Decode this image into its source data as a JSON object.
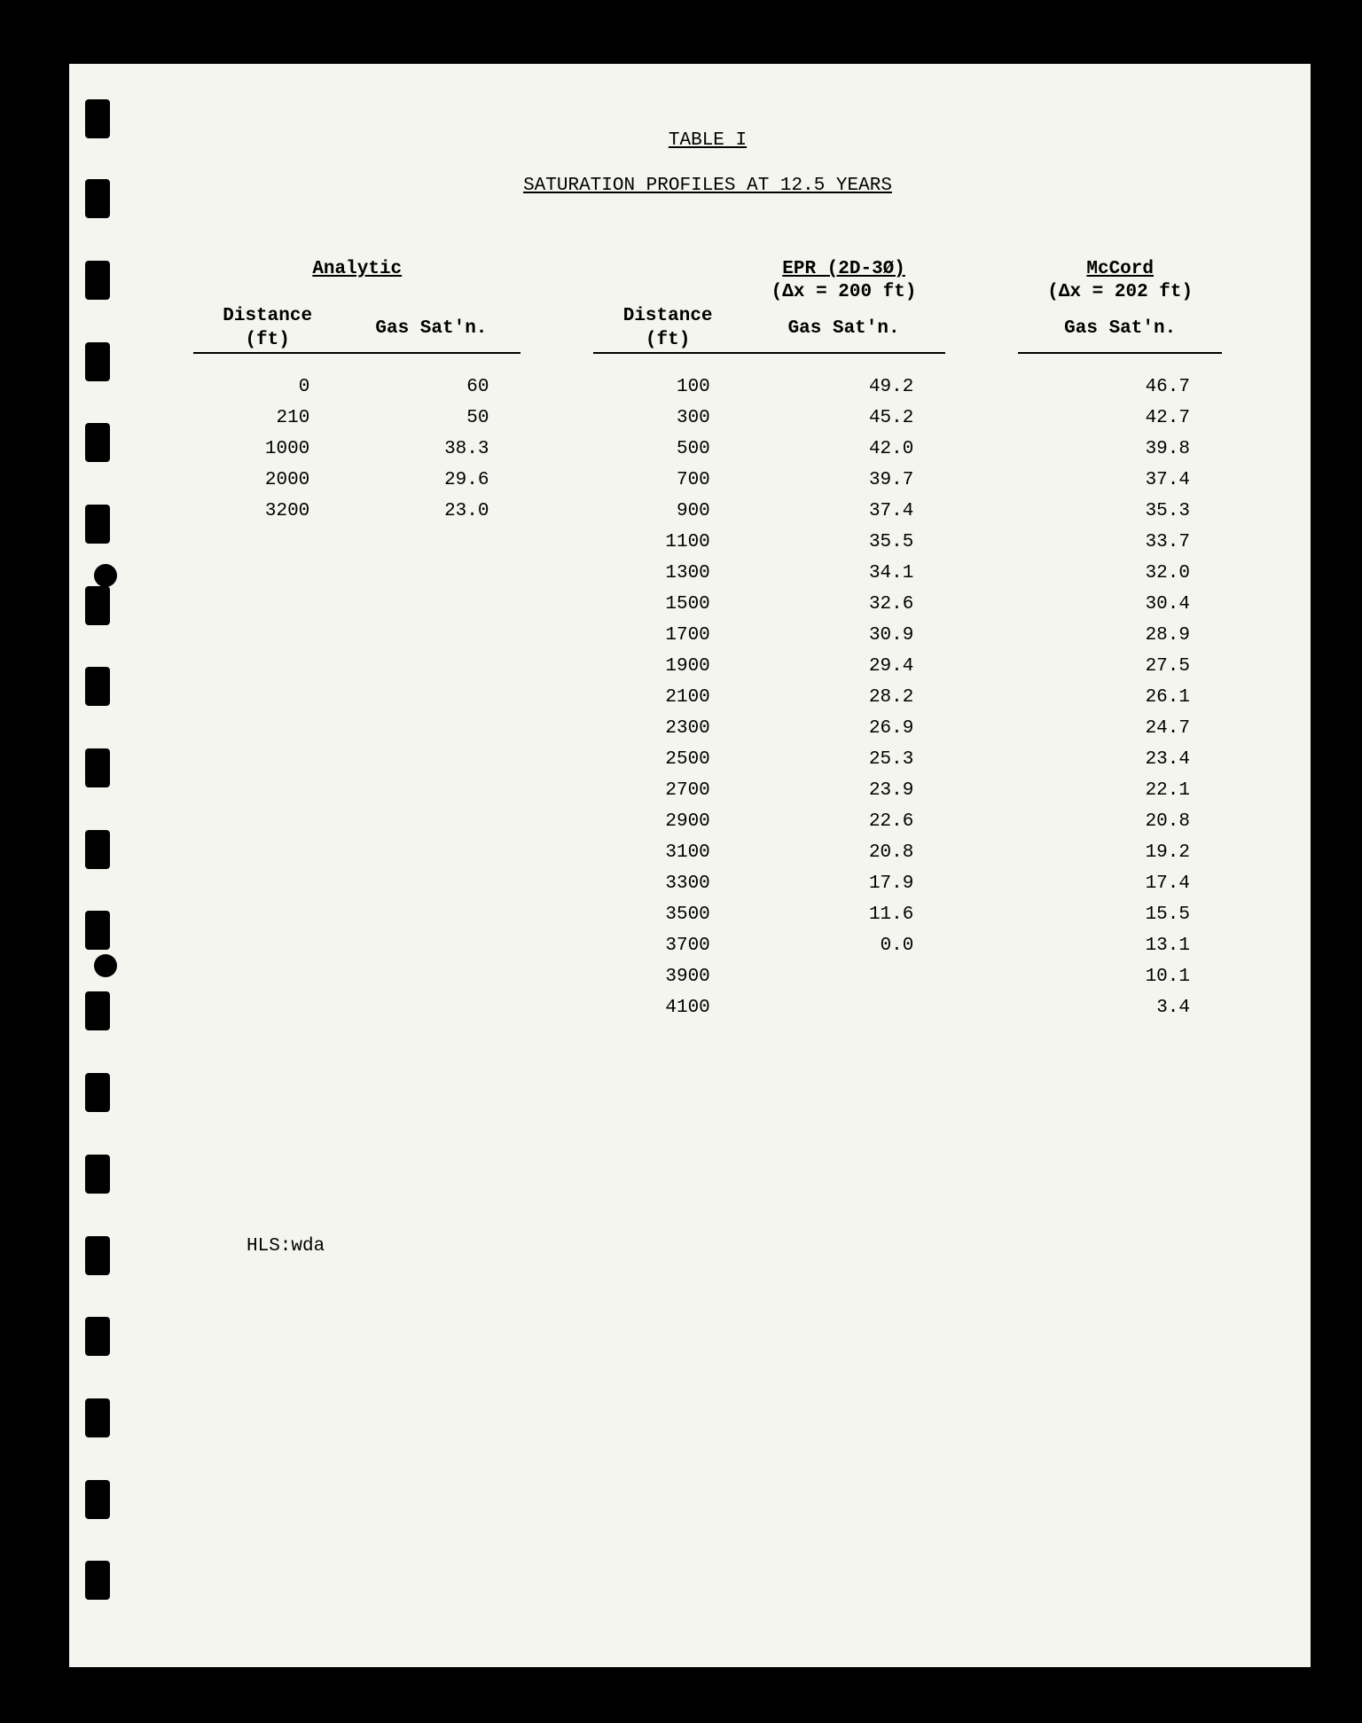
{
  "title": "TABLE I",
  "subtitle": "SATURATION PROFILES AT 12.5 YEARS",
  "footer": "HLS:wda",
  "colors": {
    "page_bg": "#f5f5f0",
    "outer_bg": "#000000",
    "text": "#000000"
  },
  "typography": {
    "font_family": "Courier New",
    "font_size": 21
  },
  "groups": {
    "analytic": {
      "label": "Analytic",
      "col1": "Distance",
      "col1_unit": "(ft)",
      "col2": "Gas Sat'n."
    },
    "epr": {
      "label": "EPR (2D-3Ø)",
      "subtext": "(Δx = 200 ft)",
      "col1": "Distance",
      "col1_unit": "(ft)",
      "col2": "Gas Sat'n."
    },
    "mccord": {
      "label": "McCord",
      "subtext": "(Δx = 202 ft)",
      "col1": "Gas Sat'n."
    }
  },
  "analytic_rows": [
    {
      "dist": "0",
      "gas": "60"
    },
    {
      "dist": "210",
      "gas": "50"
    },
    {
      "dist": "1000",
      "gas": "38.3"
    },
    {
      "dist": "2000",
      "gas": "29.6"
    },
    {
      "dist": "3200",
      "gas": "23.0"
    }
  ],
  "main_rows": [
    {
      "dist": "100",
      "epr": "49.2",
      "mccord": "46.7"
    },
    {
      "dist": "300",
      "epr": "45.2",
      "mccord": "42.7"
    },
    {
      "dist": "500",
      "epr": "42.0",
      "mccord": "39.8"
    },
    {
      "dist": "700",
      "epr": "39.7",
      "mccord": "37.4"
    },
    {
      "dist": "900",
      "epr": "37.4",
      "mccord": "35.3"
    },
    {
      "dist": "1100",
      "epr": "35.5",
      "mccord": "33.7"
    },
    {
      "dist": "1300",
      "epr": "34.1",
      "mccord": "32.0"
    },
    {
      "dist": "1500",
      "epr": "32.6",
      "mccord": "30.4"
    },
    {
      "dist": "1700",
      "epr": "30.9",
      "mccord": "28.9"
    },
    {
      "dist": "1900",
      "epr": "29.4",
      "mccord": "27.5"
    },
    {
      "dist": "2100",
      "epr": "28.2",
      "mccord": "26.1"
    },
    {
      "dist": "2300",
      "epr": "26.9",
      "mccord": "24.7"
    },
    {
      "dist": "2500",
      "epr": "25.3",
      "mccord": "23.4"
    },
    {
      "dist": "2700",
      "epr": "23.9",
      "mccord": "22.1"
    },
    {
      "dist": "2900",
      "epr": "22.6",
      "mccord": "20.8"
    },
    {
      "dist": "3100",
      "epr": "20.8",
      "mccord": "19.2"
    },
    {
      "dist": "3300",
      "epr": "17.9",
      "mccord": "17.4"
    },
    {
      "dist": "3500",
      "epr": "11.6",
      "mccord": "15.5"
    },
    {
      "dist": "3700",
      "epr": "0.0",
      "mccord": "13.1"
    },
    {
      "dist": "3900",
      "epr": "",
      "mccord": "10.1"
    },
    {
      "dist": "4100",
      "epr": "",
      "mccord": "3.4"
    }
  ],
  "hole_positions": [
    40,
    130,
    222,
    314,
    405,
    497,
    589,
    680,
    772,
    864,
    955,
    1046,
    1138,
    1230,
    1322,
    1413,
    1505,
    1597,
    1688
  ],
  "round_hole_positions": [
    564,
    1004
  ]
}
